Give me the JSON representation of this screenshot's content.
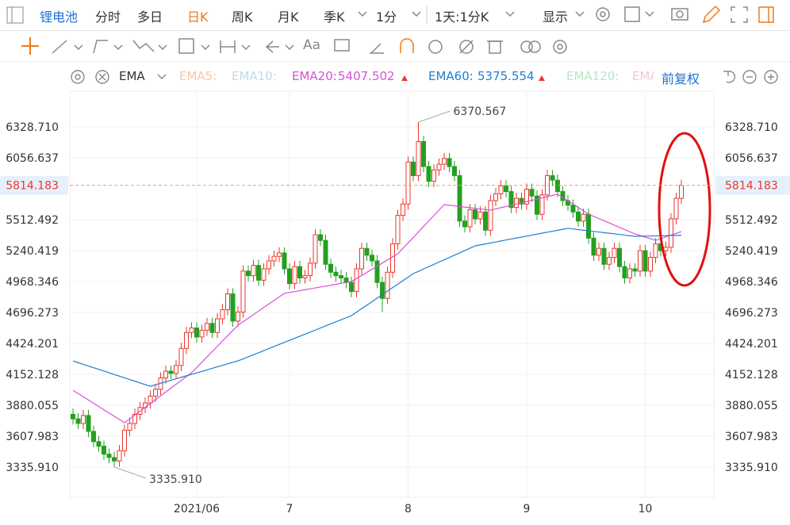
{
  "toolbar": {
    "symbol": "锂电池",
    "periods": [
      "分时",
      "多日",
      "日K",
      "周K",
      "月K",
      "季K"
    ],
    "interval": "1分",
    "range": "1天:1分K",
    "display": "显示",
    "font_button": "Aa"
  },
  "indicator_bar": {
    "name": "EMA",
    "inactive": [
      "EMA5:",
      "EMA10:",
      "EMA120:",
      "EMA"
    ],
    "adjust": "前复权"
  },
  "chart_data": {
    "type": "candlestick",
    "categories": [
      null,
      null,
      null,
      null,
      null,
      null,
      null,
      null,
      null,
      null,
      null,
      null,
      null,
      null,
      null,
      null,
      null,
      null,
      null,
      null,
      null,
      null,
      null,
      null,
      "2021/06",
      null,
      null,
      null,
      null,
      null,
      null,
      null,
      null,
      null,
      null,
      null,
      null,
      null,
      null,
      null,
      null,
      null,
      "7",
      null,
      null,
      null,
      null,
      null,
      null,
      null,
      null,
      null,
      null,
      null,
      null,
      null,
      null,
      null,
      null,
      null,
      null,
      null,
      null,
      null,
      null,
      "8",
      null,
      null,
      null,
      null,
      null,
      null,
      null,
      null,
      null,
      null,
      null,
      null,
      null,
      null,
      null,
      null,
      null,
      null,
      null,
      null,
      null,
      null,
      "9",
      null,
      null,
      null,
      null,
      null,
      null,
      null,
      null,
      null,
      null,
      null,
      null,
      null,
      null,
      null,
      null,
      null,
      null,
      null,
      null,
      null,
      null,
      "10",
      null,
      null,
      null,
      null,
      null,
      null,
      null
    ],
    "open": [
      3800,
      3760,
      3720,
      3790,
      3650,
      3560,
      3520,
      3450,
      3420,
      3390,
      3480,
      3660,
      3720,
      3800,
      3860,
      3900,
      3960,
      4020,
      4120,
      4180,
      4160,
      4230,
      4380,
      4520,
      4560,
      4480,
      4540,
      4600,
      4520,
      4640,
      4720,
      4860,
      4620,
      4700,
      5060,
      5020,
      5110,
      4980,
      5080,
      5150,
      5190,
      5220,
      5080,
      4950,
      5100,
      5000,
      5020,
      5130,
      5380,
      5330,
      5120,
      5050,
      5020,
      5000,
      4960,
      4880,
      5080,
      5260,
      5200,
      5150,
      4960,
      4820,
      5050,
      5300,
      5550,
      5650,
      6020,
      5900,
      6200,
      5980,
      5850,
      5950,
      6000,
      6050,
      5980,
      5900,
      5500,
      5450,
      5600,
      5520,
      5580,
      5420,
      5680,
      5740,
      5810,
      5760,
      5620,
      5700,
      5650,
      5780,
      5720,
      5560,
      5730,
      5900,
      5860,
      5760,
      5680,
      5640,
      5580,
      5500,
      5560,
      5350,
      5200,
      5260,
      5120,
      5180,
      5260,
      5100,
      5000,
      5080,
      5060,
      5240,
      5060,
      5180,
      5300,
      5240,
      5270,
      5520,
      5700
    ],
    "high": [
      3850,
      3810,
      3840,
      3840,
      3700,
      3610,
      3570,
      3500,
      3470,
      3530,
      3710,
      3770,
      3850,
      3910,
      3950,
      4010,
      4070,
      4170,
      4230,
      4230,
      4280,
      4430,
      4570,
      4610,
      4610,
      4590,
      4650,
      4650,
      4690,
      4770,
      4910,
      4910,
      4750,
      5110,
      5110,
      5160,
      5160,
      5130,
      5200,
      5240,
      5270,
      5270,
      5130,
      5150,
      5150,
      5070,
      5180,
      5430,
      5430,
      5380,
      5170,
      5100,
      5070,
      5050,
      5010,
      5130,
      5310,
      5310,
      5250,
      5200,
      5010,
      5100,
      5350,
      5600,
      5700,
      6070,
      6070,
      6370.567,
      6250,
      6030,
      6000,
      6050,
      6100,
      6100,
      6030,
      5950,
      5550,
      5650,
      5650,
      5630,
      5630,
      5730,
      5790,
      5860,
      5860,
      5810,
      5750,
      5750,
      5830,
      5830,
      5770,
      5780,
      5950,
      5950,
      5910,
      5810,
      5730,
      5690,
      5630,
      5610,
      5610,
      5400,
      5310,
      5310,
      5230,
      5310,
      5310,
      5150,
      5130,
      5130,
      5290,
      5290,
      5230,
      5350,
      5350,
      5320,
      5570,
      5750,
      5864
    ],
    "low": [
      3710,
      3670,
      3670,
      3600,
      3510,
      3470,
      3400,
      3370,
      3335.91,
      3340,
      3430,
      3610,
      3670,
      3750,
      3810,
      3850,
      3910,
      3970,
      4070,
      4110,
      4110,
      4180,
      4330,
      4470,
      4430,
      4430,
      4490,
      4470,
      4470,
      4590,
      4670,
      4570,
      4570,
      4650,
      4970,
      4970,
      4930,
      4930,
      5030,
      5100,
      5140,
      5030,
      4900,
      4900,
      4950,
      4950,
      4970,
      5080,
      5280,
      5070,
      5000,
      4970,
      4950,
      4910,
      4830,
      4830,
      5030,
      5150,
      5100,
      4910,
      4700,
      4770,
      5000,
      5250,
      5500,
      5600,
      5850,
      5850,
      5930,
      5800,
      5800,
      5900,
      5950,
      5930,
      5850,
      5450,
      5400,
      5400,
      5470,
      5470,
      5370,
      5370,
      5630,
      5690,
      5710,
      5570,
      5570,
      5600,
      5600,
      5670,
      5510,
      5510,
      5680,
      5810,
      5710,
      5630,
      5590,
      5530,
      5450,
      5450,
      5300,
      5150,
      5150,
      5070,
      5070,
      5130,
      5050,
      4950,
      4950,
      5010,
      5010,
      5010,
      5010,
      5130,
      5190,
      5190,
      5220,
      5470,
      5650
    ],
    "close": [
      3760,
      3720,
      3790,
      3650,
      3560,
      3520,
      3450,
      3420,
      3390,
      3480,
      3660,
      3720,
      3800,
      3860,
      3900,
      3960,
      4020,
      4120,
      4180,
      4160,
      4230,
      4380,
      4520,
      4560,
      4480,
      4540,
      4600,
      4520,
      4640,
      4720,
      4860,
      4620,
      4700,
      5060,
      5020,
      5110,
      4980,
      5080,
      5150,
      5190,
      5220,
      5080,
      4950,
      5100,
      5000,
      5020,
      5130,
      5380,
      5330,
      5120,
      5050,
      5020,
      5000,
      4960,
      4880,
      5080,
      5260,
      5200,
      5150,
      4960,
      4820,
      5050,
      5300,
      5550,
      5650,
      6020,
      5900,
      6200,
      5980,
      5850,
      5950,
      6000,
      6050,
      5980,
      5900,
      5500,
      5450,
      5600,
      5520,
      5580,
      5420,
      5680,
      5740,
      5810,
      5760,
      5620,
      5700,
      5650,
      5780,
      5720,
      5560,
      5730,
      5900,
      5860,
      5760,
      5680,
      5640,
      5580,
      5500,
      5560,
      5350,
      5200,
      5260,
      5120,
      5180,
      5260,
      5100,
      5000,
      5080,
      5060,
      5240,
      5060,
      5180,
      5300,
      5240,
      5270,
      5520,
      5700,
      5814.183
    ],
    "up_color": "#e8382f",
    "down_color": "#23a020",
    "series": [
      {
        "name": "EMA20:",
        "color": "#d94fd9",
        "values": [
          4012,
          3983,
          3955,
          3926,
          3898,
          3869,
          3840,
          3812,
          3783,
          3755,
          3726,
          3760,
          3794,
          3828,
          3861,
          3895,
          3929,
          3963,
          3997,
          4031,
          4064,
          4098,
          4132,
          4166,
          4212,
          4259,
          4305,
          4352,
          4398,
          4445,
          4491,
          4538,
          4584,
          4615,
          4646,
          4677,
          4708,
          4740,
          4771,
          4802,
          4833,
          4864,
          4872,
          4880,
          4888,
          4896,
          4904,
          4912,
          4920,
          4928,
          4936,
          4944,
          4952,
          4960,
          4968,
          4995,
          5022,
          5049,
          5076,
          5103,
          5131,
          5158,
          5185,
          5212,
          5260,
          5308,
          5356,
          5404,
          5452,
          5501,
          5549,
          5597,
          5645,
          5640,
          5634,
          5629,
          5623,
          5618,
          5612,
          5607,
          5601,
          5596,
          5607,
          5618,
          5628,
          5639,
          5650,
          5661,
          5672,
          5682,
          5693,
          5704,
          5715,
          5726,
          5736,
          5707,
          5678,
          5649,
          5620,
          5590,
          5561,
          5542,
          5522,
          5503,
          5484,
          5464,
          5445,
          5426,
          5406,
          5387,
          5373,
          5359,
          5345,
          5331,
          5346,
          5361,
          5377,
          5392,
          5407.502
        ]
      },
      {
        "name": "EMA60:",
        "color": "#1f7fd0",
        "values": [
          4270,
          4255,
          4240,
          4225,
          4210,
          4196,
          4181,
          4166,
          4151,
          4136,
          4121,
          4106,
          4092,
          4077,
          4062,
          4047,
          4060,
          4073,
          4086,
          4100,
          4113,
          4126,
          4139,
          4152,
          4165,
          4178,
          4191,
          4205,
          4218,
          4231,
          4244,
          4257,
          4270,
          4288,
          4306,
          4324,
          4342,
          4360,
          4379,
          4397,
          4415,
          4433,
          4451,
          4469,
          4487,
          4505,
          4523,
          4541,
          4560,
          4578,
          4596,
          4614,
          4632,
          4650,
          4668,
          4699,
          4730,
          4760,
          4791,
          4822,
          4853,
          4884,
          4915,
          4945,
          4976,
          5007,
          5038,
          5058,
          5079,
          5099,
          5119,
          5140,
          5160,
          5180,
          5201,
          5221,
          5241,
          5262,
          5282,
          5291,
          5299,
          5308,
          5316,
          5325,
          5334,
          5342,
          5351,
          5359,
          5368,
          5376,
          5385,
          5394,
          5402,
          5411,
          5419,
          5428,
          5436,
          5431,
          5425,
          5420,
          5414,
          5409,
          5404,
          5398,
          5393,
          5388,
          5382,
          5377,
          5371,
          5366,
          5367,
          5368,
          5369,
          5370,
          5371,
          5372,
          5373,
          5374,
          5375.554
        ]
      }
    ],
    "extreme_labels": {
      "max": "6370.567",
      "min": "3335.910"
    },
    "ylim": [
      3070.8,
      6642.6
    ],
    "yticks": [
      {
        "value": 3335.91,
        "label": "3335.910"
      },
      3607.983,
      3880.055,
      4152.128,
      4424.201,
      4696.273,
      4968.346,
      5240.419,
      5512.492,
      6056.637,
      {
        "value": 6328.71,
        "label": "6328.710"
      }
    ],
    "grid": true
  }
}
